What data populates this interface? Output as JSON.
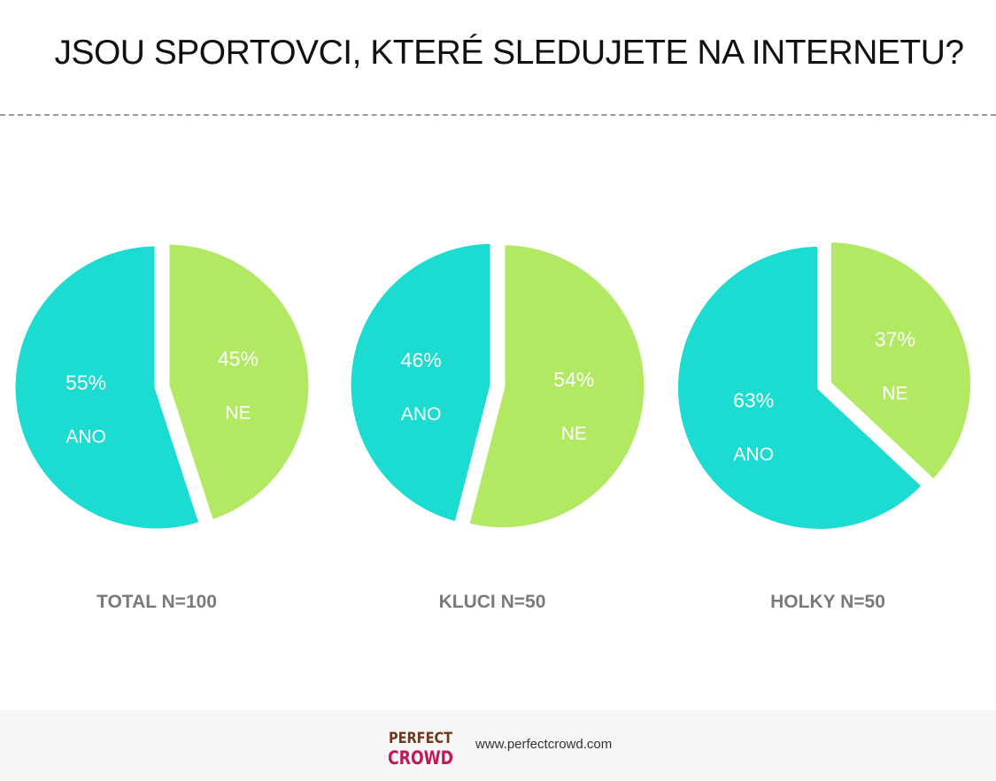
{
  "title": "JSOU SPORTOVCI, KTERÉ SLEDUJETE NA INTERNETU?",
  "colors": {
    "ano": "#1cdcd2",
    "ne": "#b2e963",
    "label": "#ffffff",
    "caption": "#7a7a7a"
  },
  "chart_data": [
    {
      "type": "pie",
      "title": "TOTAL N=100",
      "slices": [
        {
          "label": "ANO",
          "value": 55,
          "text": "55%"
        },
        {
          "label": "NE",
          "value": 45,
          "text": "45%"
        }
      ]
    },
    {
      "type": "pie",
      "title": "KLUCI N=50",
      "slices": [
        {
          "label": "ANO",
          "value": 46,
          "text": "46%"
        },
        {
          "label": "NE",
          "value": 54,
          "text": "54%"
        }
      ]
    },
    {
      "type": "pie",
      "title": "HOLKY N=50",
      "slices": [
        {
          "label": "ANO",
          "value": 63,
          "text": "63%"
        },
        {
          "label": "NE",
          "value": 37,
          "text": "37%"
        }
      ]
    }
  ],
  "footer": {
    "logo_text_top": "PERFECT",
    "logo_text_bottom": "CROWD",
    "url": "www.perfectcrowd.com"
  }
}
